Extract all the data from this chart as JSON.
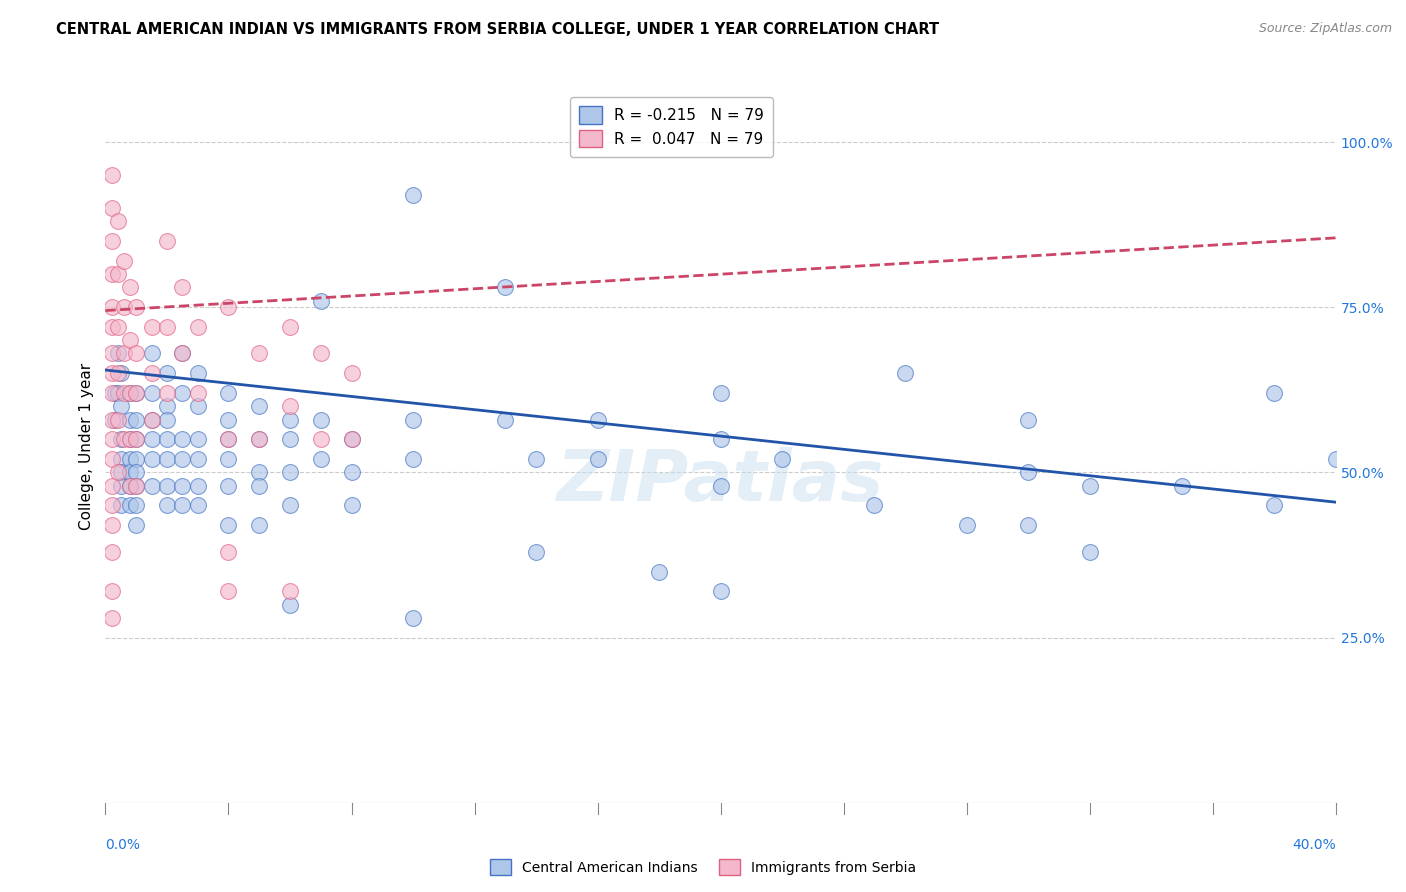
{
  "title": "CENTRAL AMERICAN INDIAN VS IMMIGRANTS FROM SERBIA COLLEGE, UNDER 1 YEAR CORRELATION CHART",
  "source": "Source: ZipAtlas.com",
  "ylabel": "College, Under 1 year",
  "xmin": 0.0,
  "xmax": 0.4,
  "ymin": 0.0,
  "ymax": 1.08,
  "yticks": [
    0.25,
    0.5,
    0.75,
    1.0
  ],
  "ytick_labels": [
    "25.0%",
    "50.0%",
    "75.0%",
    "100.0%"
  ],
  "blue_color": "#aec6e8",
  "pink_color": "#f4b8cc",
  "blue_edge": "#4472c4",
  "pink_edge": "#e06080",
  "blue_line_color": "#2255aa",
  "pink_line_color": "#cc4466",
  "watermark": "ZIPatlas",
  "legend_label_blue": "Central American Indians",
  "legend_label_pink": "Immigrants from Serbia",
  "legend_R_blue": "R = -0.215",
  "legend_R_pink": "R =  0.047",
  "legend_N": "N = 79",
  "blue_line_x0": 0.0,
  "blue_line_y0": 0.655,
  "blue_line_x1": 0.4,
  "blue_line_y1": 0.455,
  "pink_line_x0": 0.0,
  "pink_line_y0": 0.745,
  "pink_line_x1": 0.4,
  "pink_line_y1": 0.855,
  "blue_scatter": [
    [
      0.003,
      0.62
    ],
    [
      0.003,
      0.58
    ],
    [
      0.004,
      0.68
    ],
    [
      0.004,
      0.62
    ],
    [
      0.005,
      0.65
    ],
    [
      0.005,
      0.6
    ],
    [
      0.005,
      0.55
    ],
    [
      0.005,
      0.52
    ],
    [
      0.005,
      0.5
    ],
    [
      0.005,
      0.48
    ],
    [
      0.005,
      0.45
    ],
    [
      0.008,
      0.62
    ],
    [
      0.008,
      0.58
    ],
    [
      0.008,
      0.55
    ],
    [
      0.008,
      0.52
    ],
    [
      0.008,
      0.5
    ],
    [
      0.008,
      0.48
    ],
    [
      0.008,
      0.45
    ],
    [
      0.01,
      0.62
    ],
    [
      0.01,
      0.58
    ],
    [
      0.01,
      0.55
    ],
    [
      0.01,
      0.52
    ],
    [
      0.01,
      0.5
    ],
    [
      0.01,
      0.48
    ],
    [
      0.01,
      0.45
    ],
    [
      0.01,
      0.42
    ],
    [
      0.015,
      0.68
    ],
    [
      0.015,
      0.62
    ],
    [
      0.015,
      0.58
    ],
    [
      0.015,
      0.55
    ],
    [
      0.015,
      0.52
    ],
    [
      0.015,
      0.48
    ],
    [
      0.02,
      0.65
    ],
    [
      0.02,
      0.6
    ],
    [
      0.02,
      0.58
    ],
    [
      0.02,
      0.55
    ],
    [
      0.02,
      0.52
    ],
    [
      0.02,
      0.48
    ],
    [
      0.02,
      0.45
    ],
    [
      0.025,
      0.68
    ],
    [
      0.025,
      0.62
    ],
    [
      0.025,
      0.55
    ],
    [
      0.025,
      0.52
    ],
    [
      0.025,
      0.48
    ],
    [
      0.025,
      0.45
    ],
    [
      0.03,
      0.65
    ],
    [
      0.03,
      0.6
    ],
    [
      0.03,
      0.55
    ],
    [
      0.03,
      0.52
    ],
    [
      0.03,
      0.48
    ],
    [
      0.03,
      0.45
    ],
    [
      0.04,
      0.62
    ],
    [
      0.04,
      0.58
    ],
    [
      0.04,
      0.55
    ],
    [
      0.04,
      0.52
    ],
    [
      0.04,
      0.48
    ],
    [
      0.04,
      0.42
    ],
    [
      0.05,
      0.6
    ],
    [
      0.05,
      0.55
    ],
    [
      0.05,
      0.5
    ],
    [
      0.05,
      0.48
    ],
    [
      0.05,
      0.42
    ],
    [
      0.06,
      0.58
    ],
    [
      0.06,
      0.55
    ],
    [
      0.06,
      0.5
    ],
    [
      0.06,
      0.45
    ],
    [
      0.07,
      0.76
    ],
    [
      0.07,
      0.58
    ],
    [
      0.07,
      0.52
    ],
    [
      0.08,
      0.55
    ],
    [
      0.08,
      0.5
    ],
    [
      0.08,
      0.45
    ],
    [
      0.1,
      0.92
    ],
    [
      0.1,
      0.58
    ],
    [
      0.1,
      0.52
    ],
    [
      0.13,
      0.78
    ],
    [
      0.13,
      0.58
    ],
    [
      0.14,
      0.52
    ],
    [
      0.16,
      0.58
    ],
    [
      0.16,
      0.52
    ],
    [
      0.2,
      0.62
    ],
    [
      0.2,
      0.55
    ],
    [
      0.2,
      0.48
    ],
    [
      0.22,
      0.52
    ],
    [
      0.26,
      0.65
    ],
    [
      0.3,
      0.58
    ],
    [
      0.3,
      0.5
    ],
    [
      0.32,
      0.48
    ],
    [
      0.38,
      0.62
    ],
    [
      0.4,
      0.52
    ],
    [
      0.06,
      0.3
    ],
    [
      0.1,
      0.28
    ],
    [
      0.14,
      0.38
    ],
    [
      0.18,
      0.35
    ],
    [
      0.2,
      0.32
    ],
    [
      0.28,
      0.42
    ],
    [
      0.32,
      0.38
    ],
    [
      0.25,
      0.45
    ],
    [
      0.3,
      0.42
    ],
    [
      0.35,
      0.48
    ],
    [
      0.38,
      0.45
    ]
  ],
  "pink_scatter": [
    [
      0.002,
      0.95
    ],
    [
      0.002,
      0.9
    ],
    [
      0.002,
      0.85
    ],
    [
      0.002,
      0.8
    ],
    [
      0.002,
      0.75
    ],
    [
      0.002,
      0.72
    ],
    [
      0.002,
      0.68
    ],
    [
      0.002,
      0.65
    ],
    [
      0.002,
      0.62
    ],
    [
      0.002,
      0.58
    ],
    [
      0.002,
      0.55
    ],
    [
      0.002,
      0.52
    ],
    [
      0.002,
      0.48
    ],
    [
      0.002,
      0.45
    ],
    [
      0.002,
      0.42
    ],
    [
      0.002,
      0.38
    ],
    [
      0.002,
      0.32
    ],
    [
      0.004,
      0.88
    ],
    [
      0.004,
      0.8
    ],
    [
      0.004,
      0.72
    ],
    [
      0.004,
      0.65
    ],
    [
      0.004,
      0.58
    ],
    [
      0.004,
      0.5
    ],
    [
      0.006,
      0.82
    ],
    [
      0.006,
      0.75
    ],
    [
      0.006,
      0.68
    ],
    [
      0.006,
      0.62
    ],
    [
      0.006,
      0.55
    ],
    [
      0.008,
      0.78
    ],
    [
      0.008,
      0.7
    ],
    [
      0.008,
      0.62
    ],
    [
      0.008,
      0.55
    ],
    [
      0.008,
      0.48
    ],
    [
      0.01,
      0.75
    ],
    [
      0.01,
      0.68
    ],
    [
      0.01,
      0.62
    ],
    [
      0.01,
      0.55
    ],
    [
      0.01,
      0.48
    ],
    [
      0.015,
      0.72
    ],
    [
      0.015,
      0.65
    ],
    [
      0.015,
      0.58
    ],
    [
      0.02,
      0.85
    ],
    [
      0.02,
      0.72
    ],
    [
      0.02,
      0.62
    ],
    [
      0.025,
      0.78
    ],
    [
      0.025,
      0.68
    ],
    [
      0.03,
      0.72
    ],
    [
      0.03,
      0.62
    ],
    [
      0.04,
      0.75
    ],
    [
      0.04,
      0.55
    ],
    [
      0.04,
      0.38
    ],
    [
      0.05,
      0.68
    ],
    [
      0.05,
      0.55
    ],
    [
      0.06,
      0.72
    ],
    [
      0.06,
      0.6
    ],
    [
      0.07,
      0.68
    ],
    [
      0.07,
      0.55
    ],
    [
      0.08,
      0.65
    ],
    [
      0.08,
      0.55
    ],
    [
      0.04,
      0.32
    ],
    [
      0.06,
      0.32
    ],
    [
      0.002,
      0.28
    ]
  ]
}
